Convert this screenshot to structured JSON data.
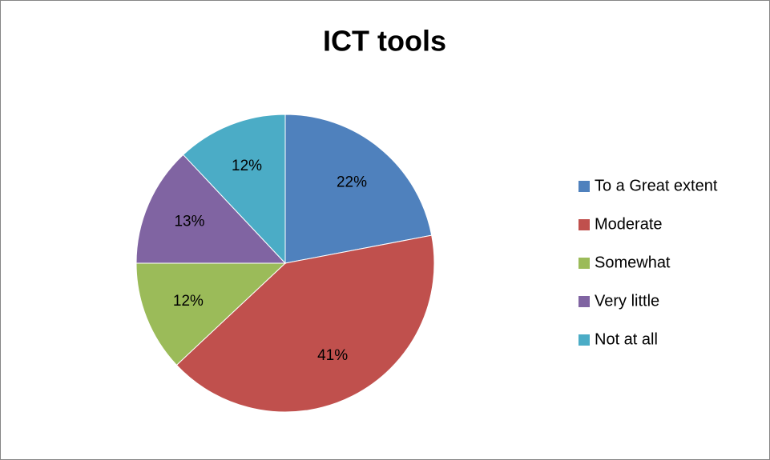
{
  "chart_data": {
    "type": "pie",
    "title": "ICT tools",
    "categories": [
      "To a Great extent",
      "Moderate",
      "Somewhat",
      "Very little",
      "Not at all"
    ],
    "values": [
      22,
      41,
      12,
      13,
      12
    ],
    "value_labels": [
      "22%",
      "41%",
      "12%",
      "13%",
      "12%"
    ],
    "colors": [
      "#4f81bd",
      "#c0504d",
      "#9bbb59",
      "#8064a2",
      "#4bacc6"
    ],
    "legend": "right"
  }
}
